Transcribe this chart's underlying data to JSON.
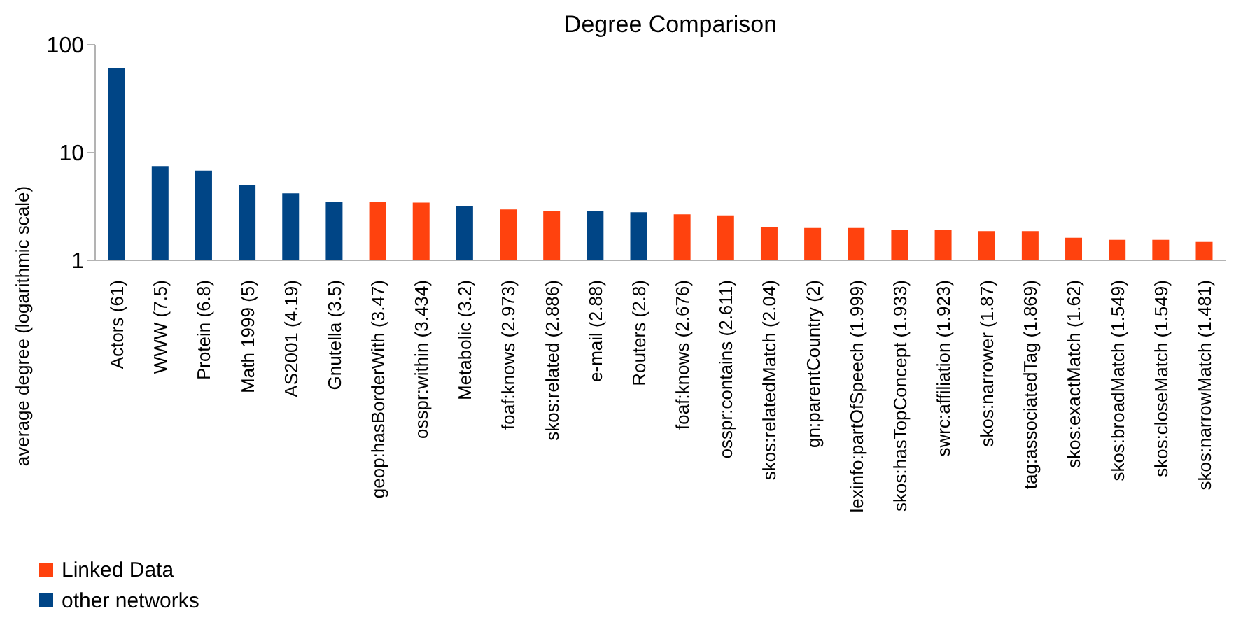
{
  "chart_data": {
    "type": "bar",
    "title": "Degree Comparison",
    "ylabel": "average degree (logarithmic scale)",
    "categories": [
      "Actors (61)",
      "WWW (7.5)",
      "Protein (6.8)",
      "Math 1999 (5)",
      "AS2001 (4.19)",
      "Gnutella (3.5)",
      "geop:hasBorderWith (3.47)",
      "osspr:within (3.434)",
      "Metabolic (3.2)",
      "foaf:knows (2.973)",
      "skos:related (2.886)",
      "e-mail (2.88)",
      "Routers (2.8)",
      "foaf:knows (2.676)",
      "osspr:contains (2.611)",
      "skos:relatedMatch (2.04)",
      "gn:parentCountry (2)",
      "lexinfo:partOfSpeech (1.999)",
      "skos:hasTopConcept (1.933)",
      "swrc:affiliation (1.923)",
      "skos:narrower (1.87)",
      "tag:associatedTag (1.869)",
      "skos:exactMatch (1.62)",
      "skos:broadMatch (1.549)",
      "skos:closeMatch (1.549)",
      "skos:narrowMatch (1.481)"
    ],
    "series": [
      {
        "name": "Linked Data",
        "color": "#ff420e",
        "values": [
          null,
          null,
          null,
          null,
          null,
          null,
          3.47,
          3.434,
          null,
          2.973,
          2.886,
          null,
          null,
          2.676,
          2.611,
          2.04,
          2,
          1.999,
          1.933,
          1.923,
          1.87,
          1.869,
          1.62,
          1.549,
          1.549,
          1.481
        ]
      },
      {
        "name": "other networks",
        "color": "#004586",
        "values": [
          61,
          7.5,
          6.8,
          5,
          4.19,
          3.5,
          null,
          null,
          3.2,
          null,
          null,
          2.88,
          2.8,
          null,
          null,
          null,
          null,
          null,
          null,
          null,
          null,
          null,
          null,
          null,
          null,
          null
        ]
      }
    ],
    "log": true,
    "ylim": [
      1,
      100
    ],
    "yticks": [
      1,
      10,
      100
    ],
    "grid": false,
    "legend": "bottom left"
  }
}
